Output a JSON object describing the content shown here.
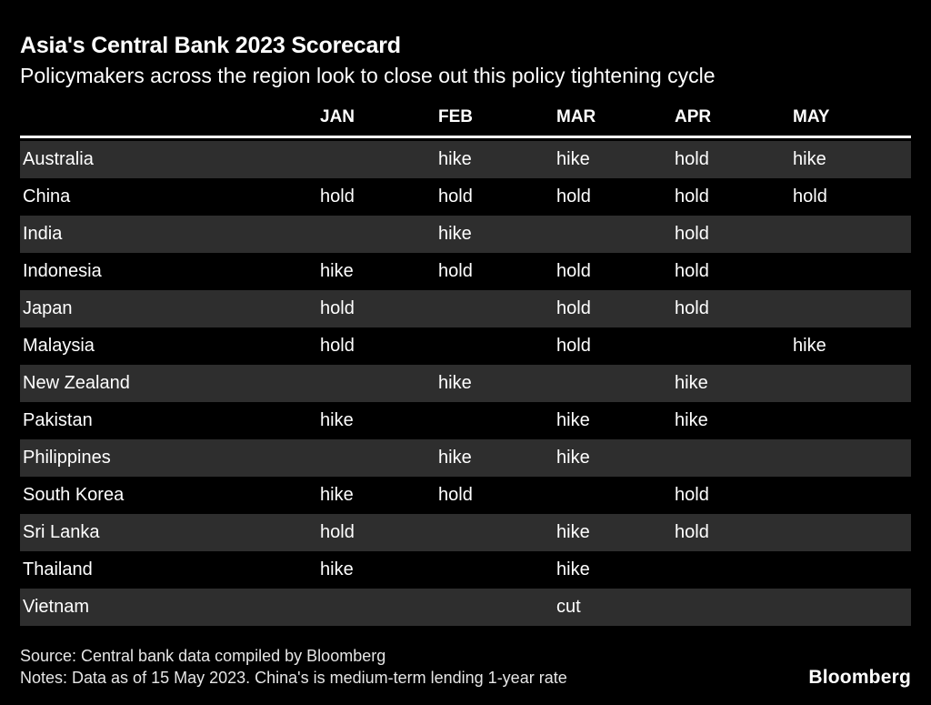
{
  "page": {
    "background": "#000000",
    "stripe_color": "#2e2e2e",
    "text_color": "#ffffff",
    "footer_text_color": "#e6e6e6"
  },
  "chart_data": {
    "type": "table",
    "title": "Asia's Central Bank 2023 Scorecard",
    "subtitle": "Policymakers across the region look to close out this policy tightening cycle",
    "columns": [
      "JAN",
      "FEB",
      "MAR",
      "APR",
      "MAY"
    ],
    "rows": [
      {
        "country": "Australia",
        "values": [
          "",
          "hike",
          "hike",
          "hold",
          "hike"
        ]
      },
      {
        "country": "China",
        "values": [
          "hold",
          "hold",
          "hold",
          "hold",
          "hold"
        ]
      },
      {
        "country": "India",
        "values": [
          "",
          "hike",
          "",
          "hold",
          ""
        ]
      },
      {
        "country": "Indonesia",
        "values": [
          "hike",
          "hold",
          "hold",
          "hold",
          ""
        ]
      },
      {
        "country": "Japan",
        "values": [
          "hold",
          "",
          "hold",
          "hold",
          ""
        ]
      },
      {
        "country": "Malaysia",
        "values": [
          "hold",
          "",
          "hold",
          "",
          "hike"
        ]
      },
      {
        "country": "New Zealand",
        "values": [
          "",
          "hike",
          "",
          "hike",
          ""
        ]
      },
      {
        "country": "Pakistan",
        "values": [
          "hike",
          "",
          "hike",
          "hike",
          ""
        ]
      },
      {
        "country": "Philippines",
        "values": [
          "",
          "hike",
          "hike",
          "",
          ""
        ]
      },
      {
        "country": "South Korea",
        "values": [
          "hike",
          "hold",
          "",
          "hold",
          ""
        ]
      },
      {
        "country": "Sri Lanka",
        "values": [
          "hold",
          "",
          "hike",
          "hold",
          ""
        ]
      },
      {
        "country": "Thailand",
        "values": [
          "hike",
          "",
          "hike",
          "",
          ""
        ]
      },
      {
        "country": "Vietnam",
        "values": [
          "",
          "",
          "cut",
          "",
          ""
        ]
      }
    ]
  },
  "footer": {
    "source": "Source: Central bank data compiled by Bloomberg",
    "notes": "Notes: Data as of 15 May 2023. China's is medium-term lending 1-year rate",
    "logo": "Bloomberg"
  }
}
